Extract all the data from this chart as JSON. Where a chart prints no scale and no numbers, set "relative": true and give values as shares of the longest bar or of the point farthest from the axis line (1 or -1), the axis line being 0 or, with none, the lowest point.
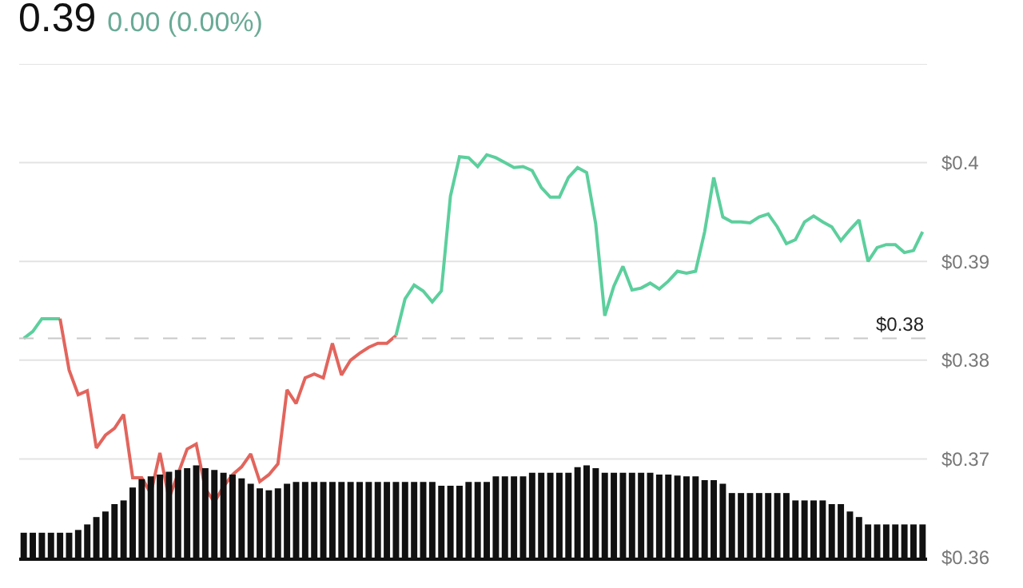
{
  "chart_data": [
    {
      "type": "line",
      "title": "0.39",
      "subtitle": "0.00 (0.00%)",
      "categories": [
        null,
        null,
        null,
        null,
        null,
        null,
        null,
        null,
        null,
        null,
        null,
        null,
        null,
        null,
        null,
        null,
        null,
        null,
        null,
        null,
        null,
        null,
        null,
        null,
        null,
        null,
        null,
        null,
        null,
        null,
        null,
        null,
        null,
        null,
        null,
        null,
        null,
        null,
        null,
        null,
        null,
        null,
        null,
        null,
        null,
        null,
        null,
        null,
        null,
        null,
        null,
        null,
        null,
        null,
        null,
        null,
        null,
        null,
        null,
        null,
        null,
        null,
        null,
        null,
        null,
        null,
        null,
        null,
        null,
        null,
        null,
        null,
        null,
        null,
        null,
        null,
        null,
        null,
        null,
        null,
        null,
        null,
        null,
        null,
        null,
        null,
        null,
        null,
        null,
        null,
        null,
        null,
        null,
        null,
        null,
        null,
        null,
        null,
        null,
        null
      ],
      "series": [
        {
          "color": "#5ccf9d",
          "values": [
            0.3822,
            0.3829,
            0.3842,
            0.3842,
            0.3842,
            null,
            null,
            null,
            null,
            null,
            null,
            null,
            null,
            null,
            null,
            null,
            null,
            null,
            null,
            null,
            null,
            null,
            null,
            null,
            null,
            null,
            null,
            null,
            null,
            null,
            null,
            null,
            null,
            null,
            null,
            null,
            null,
            null,
            null,
            null,
            null,
            null,
            null,
            null,
            null,
            null,
            null,
            null,
            null,
            null,
            null,
            null,
            null,
            null,
            null,
            null,
            null,
            null,
            null,
            null,
            null,
            null,
            null,
            null,
            null,
            null,
            null,
            null,
            null,
            null,
            null,
            null,
            null,
            null,
            null,
            null,
            null,
            null,
            null,
            null,
            null,
            null,
            null,
            null,
            null,
            null,
            null,
            null,
            null,
            null,
            null,
            null,
            null,
            null,
            null,
            null,
            null,
            null,
            null,
            null
          ]
        },
        {
          "color": "#e2655d",
          "values": [
            null,
            null,
            null,
            null,
            0.3842,
            0.379,
            0.3765,
            0.3769,
            0.3711,
            0.3724,
            0.3731,
            0.3745,
            0.3681,
            0.3681,
            0.3665,
            0.3706,
            0.366,
            0.3685,
            0.371,
            0.3715,
            0.367,
            0.3656,
            0.3672,
            0.3684,
            0.3692,
            0.3705,
            0.3677,
            0.3684,
            0.3695,
            0.377,
            0.3756,
            0.3782,
            0.3786,
            0.3782,
            0.3817,
            0.3785,
            0.38,
            0.3807,
            0.3813,
            0.3817,
            0.3817,
            0.3825,
            null,
            null,
            null,
            null,
            null,
            null,
            null,
            null,
            null,
            null,
            null,
            null,
            null,
            null,
            null,
            null,
            null,
            null,
            null,
            null,
            null,
            null,
            null,
            null,
            null,
            null,
            null,
            null,
            null,
            null,
            null,
            null,
            null,
            null,
            null,
            null,
            null,
            null,
            null,
            null,
            null,
            null,
            null,
            null,
            null,
            null,
            null,
            null,
            null,
            null,
            null,
            null,
            null,
            null,
            null,
            null,
            null,
            null
          ]
        },
        {
          "color": "#5ccf9d",
          "values": [
            null,
            null,
            null,
            null,
            null,
            null,
            null,
            null,
            null,
            null,
            null,
            null,
            null,
            null,
            null,
            null,
            null,
            null,
            null,
            null,
            null,
            null,
            null,
            null,
            null,
            null,
            null,
            null,
            null,
            null,
            null,
            null,
            null,
            null,
            null,
            null,
            null,
            null,
            null,
            null,
            null,
            0.3825,
            0.3862,
            0.3876,
            0.387,
            0.3859,
            0.387,
            0.3966,
            0.4006,
            0.4005,
            0.3996,
            0.4008,
            0.4005,
            0.4,
            0.3995,
            0.3996,
            0.3992,
            0.3975,
            0.3965,
            0.3965,
            0.3985,
            0.3995,
            0.399,
            0.3938,
            0.3845,
            0.3875,
            0.3895,
            0.3871,
            0.3873,
            0.3878,
            0.3872,
            0.388,
            0.389,
            0.3888,
            0.389,
            0.393,
            0.3985,
            0.3945,
            0.394,
            0.394,
            0.3939,
            0.3945,
            0.3948,
            0.3935,
            0.3918,
            0.3922,
            0.394,
            0.3946,
            0.394,
            0.3935,
            0.3921,
            0.3932,
            0.3942,
            0.39,
            0.3914,
            0.3917,
            0.3917,
            0.3909,
            0.3911,
            0.393
          ]
        }
      ],
      "ylim": [
        0.36,
        0.41
      ],
      "yticks": [
        {
          "value": 0.36,
          "label": "$0.36"
        },
        {
          "value": 0.37,
          "label": "$0.37"
        },
        {
          "value": 0.38,
          "label": "$0.38"
        },
        {
          "value": 0.39,
          "label": "$0.39"
        },
        {
          "value": 0.4,
          "label": "$0.4"
        },
        {
          "value": 0.41,
          "label": null
        }
      ],
      "grid": "y",
      "tick_labels": "y",
      "ref_lines": [
        {
          "axis": "y",
          "value": 0.3822,
          "label": "$0.38",
          "color": "#c8c8c8",
          "line_style": "dashed"
        }
      ]
    },
    {
      "type": "bar",
      "relative": true,
      "color": "#111111",
      "categories": [
        null,
        null,
        null,
        null,
        null,
        null,
        null,
        null,
        null,
        null,
        null,
        null,
        null,
        null,
        null,
        null,
        null,
        null,
        null,
        null,
        null,
        null,
        null,
        null,
        null,
        null,
        null,
        null,
        null,
        null,
        null,
        null,
        null,
        null,
        null,
        null,
        null,
        null,
        null,
        null,
        null,
        null,
        null,
        null,
        null,
        null,
        null,
        null,
        null,
        null,
        null,
        null,
        null,
        null,
        null,
        null,
        null,
        null,
        null,
        null,
        null,
        null,
        null,
        null,
        null,
        null,
        null,
        null,
        null,
        null,
        null,
        null,
        null,
        null,
        null,
        null,
        null,
        null,
        null,
        null,
        null,
        null,
        null,
        null,
        null,
        null,
        null,
        null,
        null,
        null,
        null,
        null,
        null,
        null,
        null,
        null,
        null,
        null,
        null,
        null
      ],
      "values": [
        0.27,
        0.27,
        0.27,
        0.27,
        0.27,
        0.27,
        0.3,
        0.36,
        0.44,
        0.5,
        0.58,
        0.62,
        0.76,
        0.85,
        0.88,
        0.9,
        0.93,
        0.95,
        0.97,
        1.0,
        0.97,
        0.95,
        0.92,
        0.9,
        0.86,
        0.8,
        0.75,
        0.73,
        0.75,
        0.8,
        0.82,
        0.82,
        0.82,
        0.82,
        0.82,
        0.82,
        0.82,
        0.82,
        0.82,
        0.82,
        0.82,
        0.82,
        0.82,
        0.82,
        0.82,
        0.82,
        0.78,
        0.78,
        0.78,
        0.82,
        0.82,
        0.82,
        0.88,
        0.88,
        0.88,
        0.88,
        0.92,
        0.92,
        0.92,
        0.92,
        0.92,
        0.98,
        1.0,
        0.97,
        0.92,
        0.92,
        0.92,
        0.92,
        0.92,
        0.92,
        0.9,
        0.9,
        0.89,
        0.88,
        0.88,
        0.84,
        0.84,
        0.8,
        0.7,
        0.7,
        0.7,
        0.7,
        0.7,
        0.7,
        0.7,
        0.62,
        0.62,
        0.62,
        0.62,
        0.58,
        0.58,
        0.5,
        0.44,
        0.36,
        0.36,
        0.36,
        0.36,
        0.36,
        0.36,
        0.36
      ]
    }
  ]
}
